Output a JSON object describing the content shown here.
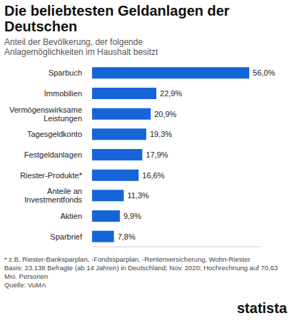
{
  "chart_data": {
    "type": "bar",
    "orientation": "horizontal",
    "title": "Die beliebtesten Geldanlagen der Deutschen",
    "subtitle": "Anteil der Bevölkerung, der folgende Anlagemöglichkeiten im Haushalt besitzt",
    "categories": [
      "Sparbuch",
      "Immobilien",
      "Vermögenswirksame Leistungen",
      "Tagesgeldkonto",
      "Festgeldanlagen",
      "Riester-Produkte*",
      "Anteile an Investmentfonds",
      "Aktien",
      "Sparbrief"
    ],
    "values": [
      56.0,
      22.9,
      20.9,
      19.3,
      17.9,
      16.6,
      11.3,
      9.9,
      7.8
    ],
    "value_labels": [
      "56,0%",
      "22,9%",
      "20,9%",
      "19,3%",
      "17,9%",
      "16,6%",
      "11,3%",
      "9,9%",
      "7,8%"
    ],
    "color": "#1565d8",
    "xlim": [
      0,
      60
    ],
    "xticks": [],
    "grid": false,
    "data_labels": true,
    "tick_labels": "y",
    "annotations": [
      "* z.B. Riester-Banksparplan, -Fondssparplan, -Rentenversicherung, Wohn-Riester",
      "Basis: 23.138 Befragte (ab 14 Jahren) in Deutschland; Nov. 2020; Hochrechnung auf 70,63 Mio. Personen",
      "Quelle: VuMA",
      "statista"
    ]
  }
}
